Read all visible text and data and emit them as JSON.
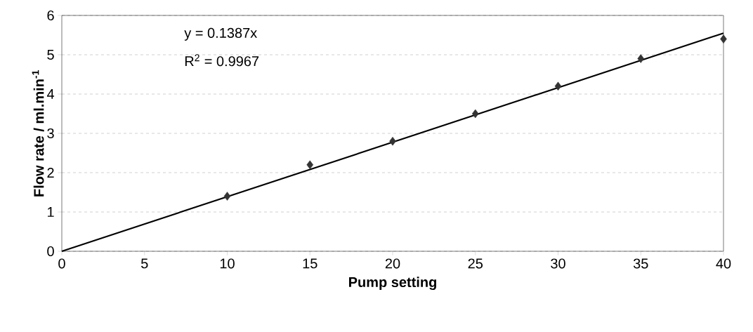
{
  "chart_data": {
    "type": "scatter",
    "xlabel": "Pump setting",
    "ylabel": "Flow rate / ml.min$^{-1}$",
    "annotations": [
      "y = 0.1387x",
      "R$^{2}$ = 0.9967"
    ],
    "xlim": [
      0,
      40
    ],
    "ylim": [
      0,
      6
    ],
    "xticks": [
      0,
      5,
      10,
      15,
      20,
      25,
      30,
      35,
      40
    ],
    "yticks": [
      0,
      1,
      2,
      3,
      4,
      5,
      6
    ],
    "grid": "y",
    "series": [
      {
        "color": "#333333",
        "marker": "diamond",
        "x": [
          10,
          15,
          20,
          25,
          30,
          35,
          40
        ],
        "values": [
          1.4,
          2.2,
          2.8,
          3.5,
          4.2,
          4.9,
          5.4
        ]
      },
      {
        "type": "line",
        "color": "#000000",
        "marker": "none",
        "line_style": "solid",
        "x": [
          0,
          40
        ],
        "values": [
          0,
          5.55
        ]
      }
    ]
  }
}
